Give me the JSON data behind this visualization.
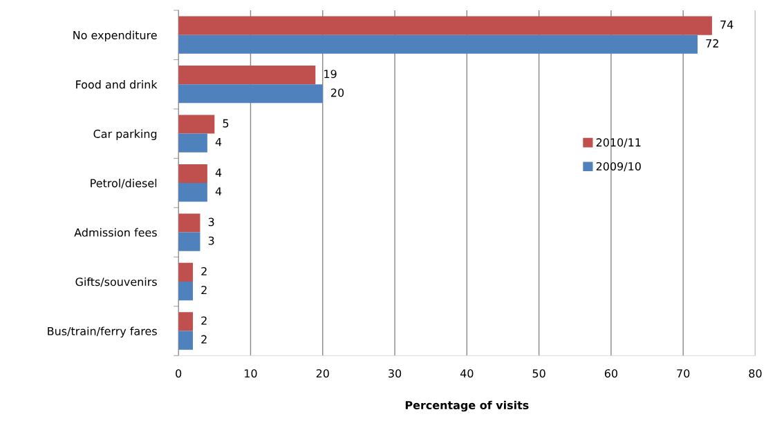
{
  "chart_data": {
    "type": "bar",
    "orientation": "horizontal",
    "xlabel": "Percentage of visits",
    "categories": [
      "No expenditure",
      "Food and drink",
      "Car parking",
      "Petrol/diesel",
      "Admission fees",
      "Gifts/souvenirs",
      "Bus/train/ferry fares"
    ],
    "series": [
      {
        "name": "2010/11",
        "color": "#c0504d",
        "values": [
          74,
          19,
          5,
          4,
          3,
          2,
          2
        ]
      },
      {
        "name": "2009/10",
        "color": "#4f81bd",
        "values": [
          72,
          20,
          4,
          4,
          3,
          2,
          2
        ]
      }
    ],
    "xlim": [
      0,
      80
    ],
    "xticks": [
      0,
      10,
      20,
      30,
      40,
      50,
      60,
      70,
      80
    ],
    "grid": "x",
    "legend": "right",
    "data_labels": true
  }
}
